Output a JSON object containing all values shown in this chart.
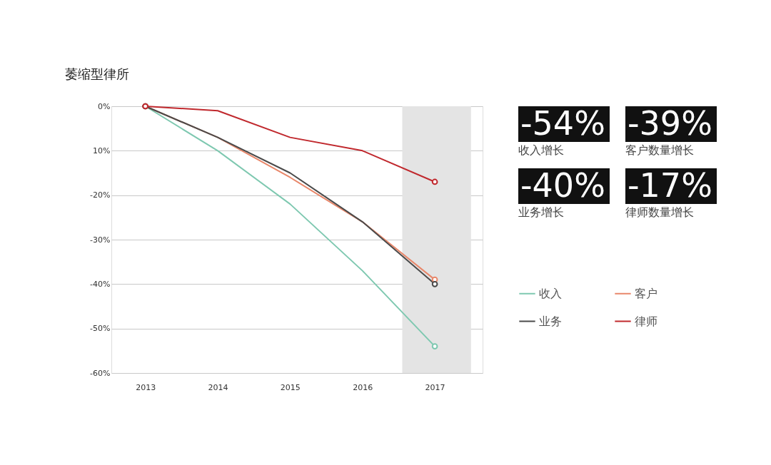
{
  "chart_data": {
    "type": "line",
    "title": "萎缩型律所",
    "x": [
      2013,
      2014,
      2015,
      2016,
      2017
    ],
    "xlim": [
      2012.53,
      2017.66
    ],
    "xticks": [
      2013,
      2014,
      2015,
      2016,
      2017
    ],
    "ylim": [
      -60,
      0
    ],
    "yticks": [
      {
        "value": 0,
        "label": "0%"
      },
      {
        "value": -10,
        "label": "10%"
      },
      {
        "value": -20,
        "label": "-20%"
      },
      {
        "value": -30,
        "label": "-30%"
      },
      {
        "value": -40,
        "label": "-40%"
      },
      {
        "value": -50,
        "label": "-50%"
      },
      {
        "value": -60,
        "label": "-60%"
      }
    ],
    "series": [
      {
        "name": "收入",
        "color": "#7ec8b0",
        "values": [
          0,
          -10,
          -22,
          -37,
          -54
        ]
      },
      {
        "name": "客户",
        "color": "#e8876a",
        "values": [
          0,
          -7,
          -16,
          -26,
          -39
        ]
      },
      {
        "name": "业务",
        "color": "#4a4a4a",
        "values": [
          0,
          -7,
          -15,
          -26,
          -40
        ]
      },
      {
        "name": "律师",
        "color": "#c0282d",
        "values": [
          0,
          -1,
          -7,
          -10,
          -17
        ]
      }
    ],
    "bands": [
      {
        "axis": "x",
        "from": 2016.55,
        "to": 2017.5,
        "color": "#e4e4e4"
      }
    ],
    "annotations": [
      "-54%",
      "收入增长",
      "-39%",
      "客户数量增长",
      "-40%",
      "业务增长",
      "-17%",
      "律师数量增长"
    ],
    "grid": "y",
    "legend": "right",
    "line_style": "solid"
  }
}
